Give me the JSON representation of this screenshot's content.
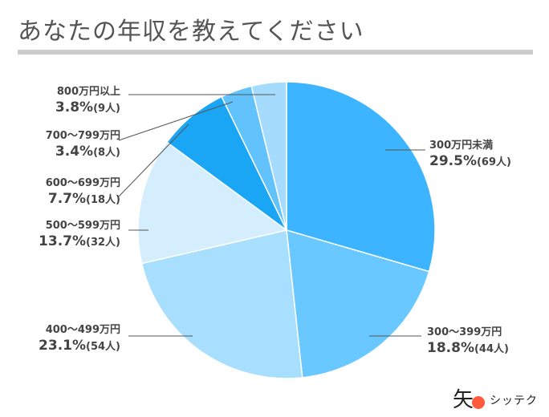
{
  "title": "あなたの年収を教えてください",
  "brand": {
    "mark": "矢",
    "name": "シッテク"
  },
  "colors": {
    "title_rule": "#cccccc",
    "title_text": "#555555",
    "label_text": "#444444",
    "leader_line": "#555555",
    "brand_dot": "#ff5a3c"
  },
  "chart_data": {
    "type": "pie",
    "start": "12 o'clock",
    "direction": "clockwise",
    "slices": [
      {
        "label": "300万円未満",
        "value": 29.5,
        "count": "(69人)",
        "color": "#3db4ff"
      },
      {
        "label": "300〜399万円",
        "value": 18.8,
        "count": "(44人)",
        "color": "#69c8ff"
      },
      {
        "label": "400〜499万円",
        "value": 23.1,
        "count": "(54人)",
        "color": "#a8defe"
      },
      {
        "label": "500〜599万円",
        "value": 13.7,
        "count": "(32人)",
        "color": "#d4eefe"
      },
      {
        "label": "600〜699万円",
        "value": 7.7,
        "count": "(18人)",
        "color": "#1ba6f5"
      },
      {
        "label": "700〜799万円",
        "value": 3.4,
        "count": "(8人)",
        "color": "#62c3fc"
      },
      {
        "label": "800万円以上",
        "value": 3.8,
        "count": "(9人)",
        "color": "#a5dcfd"
      }
    ]
  }
}
